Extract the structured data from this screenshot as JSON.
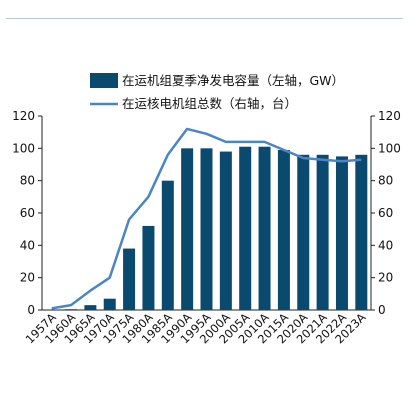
{
  "chart_data": {
    "type": "bar",
    "categories": [
      "1957A",
      "1960A",
      "1965A",
      "1970A",
      "1975A",
      "1980A",
      "1985A",
      "1990A",
      "1995A",
      "2000A",
      "2005A",
      "2010A",
      "2015A",
      "2020A",
      "2021A",
      "2022A",
      "2023A"
    ],
    "series": [
      {
        "name": "在运机组夏季净发电容量（左轴，GW）",
        "type": "bar",
        "axis": "left",
        "color": "#0b4a6f",
        "values": [
          0.1,
          0.5,
          3,
          7,
          38,
          52,
          80,
          100,
          100,
          98,
          101,
          101,
          99,
          96,
          96,
          95,
          96
        ]
      },
      {
        "name": "在运核电机组总数（右轴，台）",
        "type": "line",
        "axis": "right",
        "color": "#4a86c5",
        "values": [
          1,
          3,
          12,
          20,
          56,
          70,
          96,
          112,
          109,
          104,
          104,
          104,
          99,
          94,
          93,
          92,
          93
        ]
      }
    ],
    "y_left": {
      "min": 0,
      "max": 120,
      "ticks": [
        0,
        20,
        40,
        60,
        80,
        100,
        120
      ]
    },
    "y_right": {
      "min": 0,
      "max": 120,
      "ticks": [
        0,
        20,
        40,
        60,
        80,
        100,
        120
      ]
    },
    "legend_position": "top",
    "grid": false
  }
}
